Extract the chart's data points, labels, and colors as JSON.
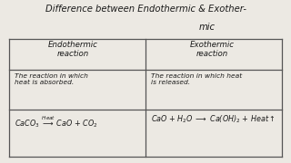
{
  "bg_color": "#ece9e3",
  "title_line1": "Difference between Endothermic & Exother-",
  "title_line2": "mic",
  "col1_header": "Endothermic\nreaction",
  "col2_header": "Exothermic\nreaction",
  "col1_def": "The reaction in which\nheat is absorbed.",
  "col2_def": "The reaction in which heat\nis released.",
  "col1_eq_parts": [
    "CaCO",
    "3",
    " → CaO + CO",
    "2"
  ],
  "col1_eq_heat": "Heat",
  "col2_eq": "CaO + H$_2$O $\\longrightarrow$ Ca(OH)$_2$ + Heat$\\uparrow$",
  "text_color": "#1a1a1a",
  "line_color": "#555555",
  "title_fontsize": 7.2,
  "header_fontsize": 6.2,
  "body_fontsize": 5.4,
  "eq_fontsize": 5.8
}
